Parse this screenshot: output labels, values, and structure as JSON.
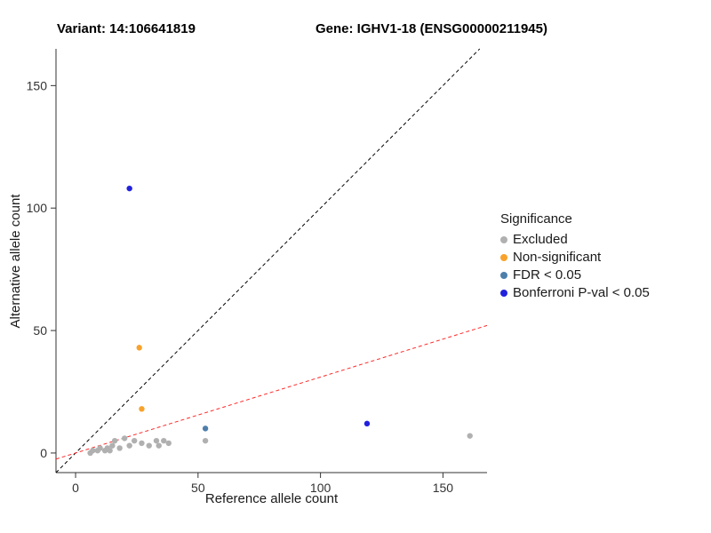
{
  "titles": {
    "variant": "Variant: 14:106641819",
    "gene": "Gene: IGHV1-18 (ENSG00000211945)"
  },
  "chart_data": {
    "type": "scatter",
    "xlabel": "Reference allele count",
    "ylabel": "Alternative allele count",
    "xlim": [
      -8,
      168
    ],
    "ylim": [
      -8,
      165
    ],
    "xticks": [
      0,
      50,
      100,
      150
    ],
    "yticks": [
      0,
      50,
      100,
      150
    ],
    "grid": false,
    "axis_color": "#333333",
    "tick_label_color": "#333333",
    "legend": {
      "title": "Significance",
      "position": "right",
      "items": [
        {
          "label": "Excluded",
          "color": "#b0b0b0"
        },
        {
          "label": "Non-significant",
          "color": "#f8a22c"
        },
        {
          "label": "FDR < 0.05",
          "color": "#4e7fab"
        },
        {
          "label": "Bonferroni P-val < 0.05",
          "color": "#2121dd"
        }
      ]
    },
    "series": [
      {
        "name": "Excluded",
        "color": "#b0b0b0",
        "points": [
          [
            6,
            0
          ],
          [
            7,
            1
          ],
          [
            9,
            1
          ],
          [
            10,
            2
          ],
          [
            12,
            1
          ],
          [
            13,
            2
          ],
          [
            14,
            1
          ],
          [
            15,
            3
          ],
          [
            16,
            5
          ],
          [
            18,
            2
          ],
          [
            20,
            6
          ],
          [
            22,
            3
          ],
          [
            24,
            5
          ],
          [
            27,
            4
          ],
          [
            30,
            3
          ],
          [
            33,
            5
          ],
          [
            34,
            3
          ],
          [
            36,
            5
          ],
          [
            38,
            4
          ],
          [
            53,
            5
          ],
          [
            161,
            7
          ]
        ]
      },
      {
        "name": "Non-significant",
        "color": "#f8a22c",
        "points": [
          [
            26,
            43
          ],
          [
            27,
            18
          ]
        ]
      },
      {
        "name": "FDR < 0.05",
        "color": "#4e7fab",
        "points": [
          [
            53,
            10
          ]
        ]
      },
      {
        "name": "Bonferroni P-val < 0.05",
        "color": "#2121dd",
        "points": [
          [
            22,
            108
          ],
          [
            119,
            12
          ]
        ]
      }
    ],
    "lines": [
      {
        "name": "identity-line",
        "color": "#000000",
        "dash": "4 3",
        "slope": 1,
        "intercept": 0
      },
      {
        "name": "expected-ratio-line",
        "color": "#ff2a2a",
        "dash": "4 3",
        "slope": 0.31,
        "intercept": 0
      }
    ]
  }
}
